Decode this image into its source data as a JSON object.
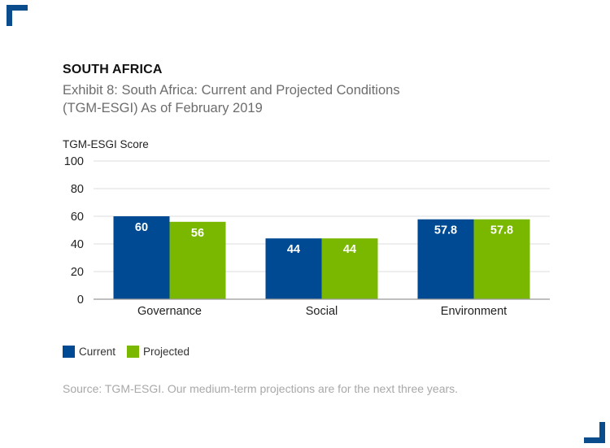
{
  "heading": "SOUTH AFRICA",
  "title_line1": "Exhibit 8: South Africa: Current and Projected Conditions",
  "title_line2": "(TGM-ESGI) As of February 2019",
  "source": "Source: TGM-ESGI. Our medium-term projections are for the next three years.",
  "colors": {
    "current": "#004a93",
    "projected": "#7ab800",
    "grid": "#dcdcdc",
    "axis": "#999999",
    "corner": "#0a4c8c"
  },
  "chart_data": {
    "type": "bar",
    "title": "Exhibit 8: South Africa: Current and Projected Conditions (TGM-ESGI) As of February 2019",
    "ylabel": "TGM-ESGI Score",
    "xlabel": "",
    "ylim": [
      0,
      100
    ],
    "yticks": [
      0,
      20,
      40,
      60,
      80,
      100
    ],
    "categories": [
      "Governance",
      "Social",
      "Environment"
    ],
    "series": [
      {
        "name": "Current",
        "values": [
          60,
          44,
          57.8
        ],
        "labels": [
          "60",
          "44",
          "57.8"
        ]
      },
      {
        "name": "Projected",
        "values": [
          56,
          44,
          57.8
        ],
        "labels": [
          "56",
          "44",
          "57.8"
        ]
      }
    ],
    "legend_position": "bottom-left",
    "grid": true
  }
}
